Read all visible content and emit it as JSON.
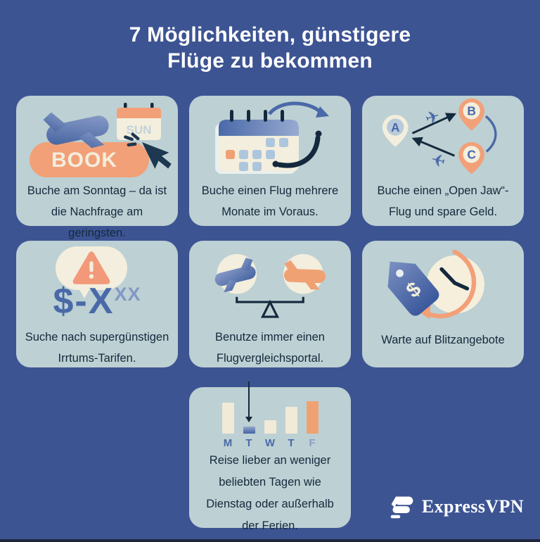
{
  "title_lines": [
    "7 Möglichkeiten, günstigere",
    "Flüge zu bekommen"
  ],
  "cards": [
    {
      "name": "book-on-sunday",
      "lines": [
        "Buche am Sonntag – da ist",
        "die Nachfrage am",
        "geringsten."
      ],
      "button_label": "BOOK",
      "calendar_label": "SUN"
    },
    {
      "name": "book-months-ahead",
      "lines": [
        "Buche einen Flug mehrere",
        "Monate im Voraus."
      ]
    },
    {
      "name": "open-jaw-flight",
      "lines": [
        "Buche einen „Open Jaw“-",
        "Flug und spare Geld."
      ],
      "pin_labels": [
        "A",
        "B",
        "C"
      ]
    },
    {
      "name": "error-fares",
      "lines": [
        "Suche nach supergünstigen",
        "Irrtums-Tarifen."
      ],
      "price_main": "$-X",
      "price_sup": "XX"
    },
    {
      "name": "comparison-portal",
      "lines": [
        "Benutze immer einen",
        "Flugvergleichsportal."
      ]
    },
    {
      "name": "flash-deals",
      "lines": [
        "Warte auf Blitzangebote"
      ],
      "tag_symbol": "$"
    },
    {
      "name": "travel-off-peak",
      "lines": [
        "Reise lieber an weniger",
        "beliebten Tagen wie",
        "Dienstag oder außerhalb",
        "der Ferien."
      ]
    }
  ],
  "chart_data": {
    "type": "bar",
    "categories": [
      "M",
      "T",
      "W",
      "T",
      "F"
    ],
    "values": [
      44,
      10,
      19,
      38,
      46
    ],
    "bar_colors": [
      "cream",
      "blue",
      "cream",
      "cream",
      "orange"
    ],
    "label_colors": [
      "#4a69a8",
      "#4a69a8",
      "#4a69a8",
      "#4a69a8",
      "#8b9cc7"
    ],
    "annotation": "arrow pointing down at Tuesday (lowest bar)",
    "title": "",
    "xlabel": "",
    "ylabel": ""
  },
  "icons": {
    "plane_glyph": "✈"
  },
  "brand": {
    "wordmark": "ExpressVPN"
  },
  "colors": {
    "background": "#3d5493",
    "card": "#bdd0d3",
    "navy_text": "#14293d",
    "blue": "#4a69a8",
    "pale_blue": "#aec6dd",
    "salmon": "#f2a078",
    "cream": "#f3eedd",
    "white": "#ffffff"
  }
}
